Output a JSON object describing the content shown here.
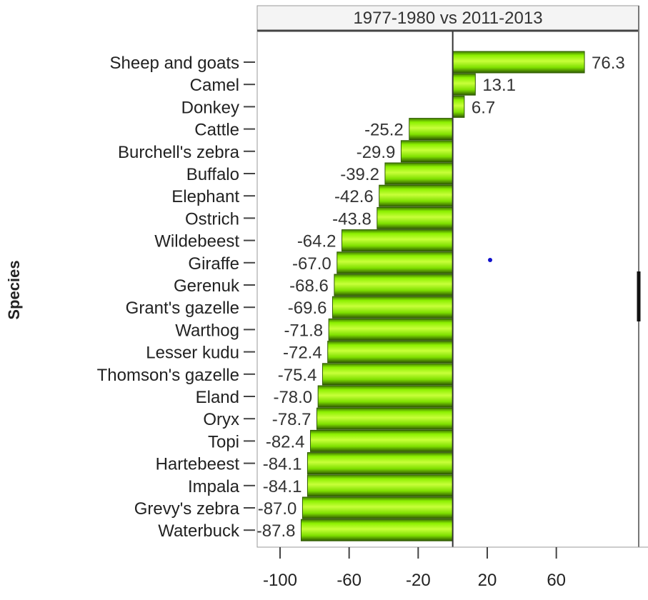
{
  "chart_data": {
    "type": "bar",
    "orientation": "horizontal",
    "title": "1977-1980 vs 2011-2013",
    "xlabel": "",
    "ylabel": "Species",
    "xlim": [
      -110,
      90
    ],
    "xticks": [
      "-100",
      "-60",
      "-20",
      "20",
      "60"
    ],
    "xtick_values": [
      -100,
      -60,
      -20,
      20,
      60
    ],
    "categories": [
      "Sheep and goats",
      "Camel",
      "Donkey",
      "Cattle",
      "Burchell's zebra",
      "Buffalo",
      "Elephant",
      "Ostrich",
      "Wildebeest",
      "Giraffe",
      "Gerenuk",
      "Grant's gazelle",
      "Warthog",
      "Lesser kudu",
      "Thomson's gazelle",
      "Eland",
      "Oryx",
      "Topi",
      "Hartebeest",
      "Impala",
      "Grevy's zebra",
      "Waterbuck"
    ],
    "values": [
      76.3,
      13.1,
      6.7,
      -25.2,
      -29.9,
      -39.2,
      -42.6,
      -43.8,
      -64.2,
      -67.0,
      -68.6,
      -69.6,
      -71.8,
      -72.4,
      -75.4,
      -78.0,
      -78.7,
      -82.4,
      -84.1,
      -84.1,
      -87.0,
      -87.8
    ],
    "value_labels": [
      "76.3",
      "13.1",
      "6.7",
      "-25.2",
      "-29.9",
      "-39.2",
      "-42.6",
      "-43.8",
      "-64.2",
      "-67.0",
      "-68.6",
      "-69.6",
      "-71.8",
      "-72.4",
      "-75.4",
      "-78.0",
      "-78.7",
      "-82.4",
      "-84.1",
      "-84.1",
      "-87.0",
      "-87.8"
    ],
    "colors": {
      "bar": "#7fe000",
      "bar_light": "#c8ff3a",
      "bar_dark": "#3f7a00",
      "edge": "#2f5a00",
      "zero_line": "#333333"
    },
    "grid": false
  }
}
